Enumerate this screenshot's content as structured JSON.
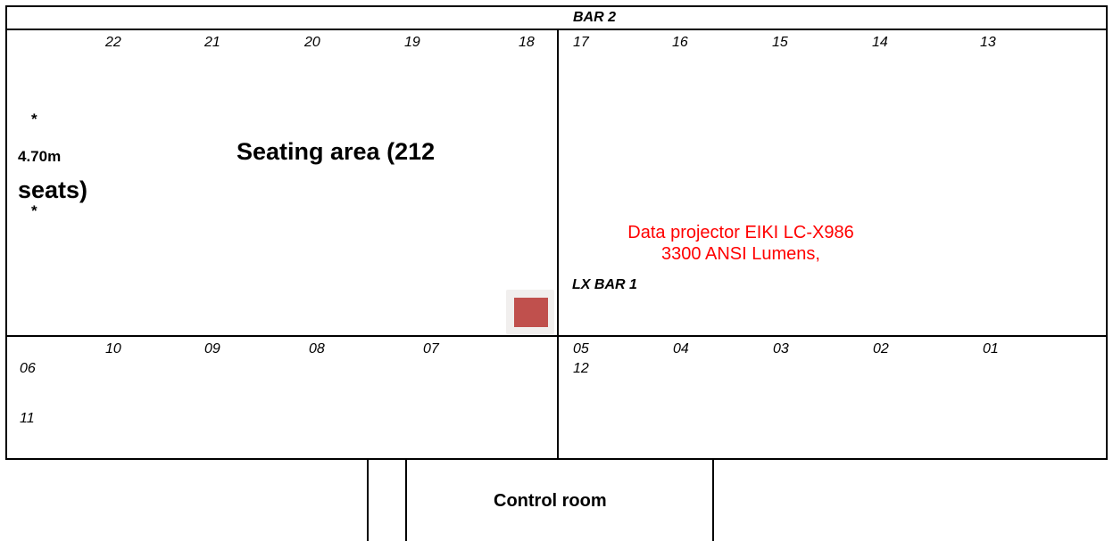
{
  "bar2_label": "BAR 2",
  "lx_bar1_label": "LX BAR 1",
  "top_left_numbers": [
    "22",
    "21",
    "20",
    "19",
    "18"
  ],
  "top_right_numbers": [
    "17",
    "16",
    "15",
    "14",
    "13"
  ],
  "bottom_left_numbers": [
    "10",
    "09",
    "08",
    "07"
  ],
  "bottom_right_numbers": [
    "05",
    "04",
    "03",
    "02",
    "01"
  ],
  "left_extra_numbers": [
    "06",
    "11"
  ],
  "right_extra_number": "12",
  "asterisk_top": "*",
  "asterisk_bottom": "*",
  "dimension_label": "4.70m",
  "seating_line1": "Seating area (212",
  "seating_line2": "seats)",
  "projector_line1": "Data projector EIKI LC-X986",
  "projector_line2": "3300 ANSI Lumens,",
  "control_room_label": "Control room",
  "colors": {
    "projector_fill": "#c0504d",
    "projector_text": "#ff0000"
  },
  "icons": {
    "projector": "projector-marker"
  }
}
